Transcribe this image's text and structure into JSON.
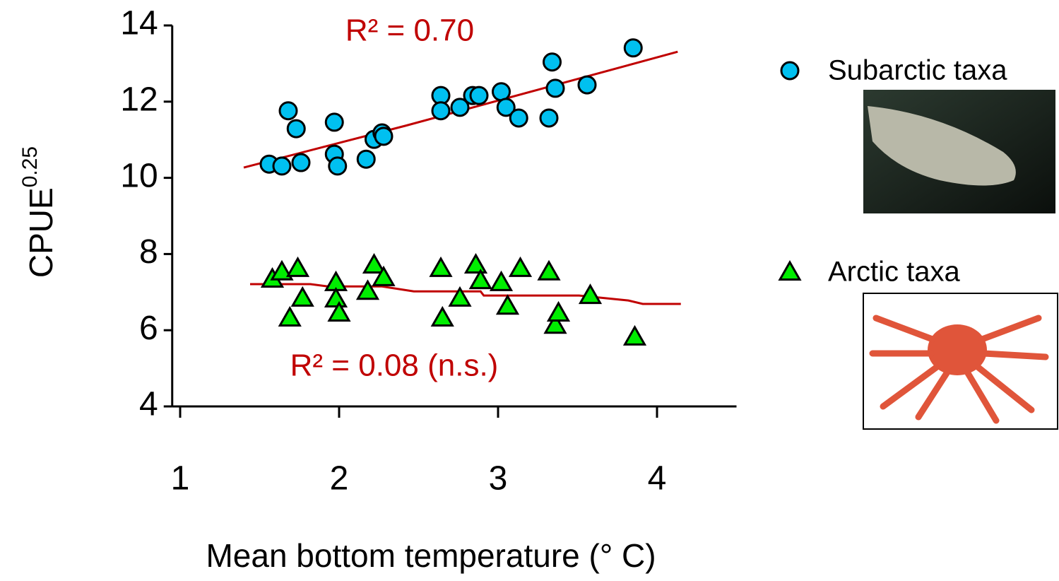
{
  "chart_data": {
    "type": "scatter",
    "xlabel": "Mean bottom temperature (° C)",
    "ylabel": {
      "text": "CPUE",
      "superscript": "0.25"
    },
    "xlim": [
      0.95,
      4.5
    ],
    "xticks": [
      1,
      2,
      3,
      4
    ],
    "ylim": [
      4,
      14
    ],
    "yticks": [
      4,
      6,
      8,
      10,
      12,
      14
    ],
    "annotations": [
      "R² = 0.70",
      "R² = 0.08 (n.s.)"
    ],
    "annotation_color": "#c00000",
    "series": [
      {
        "name": "Subarctic taxa",
        "marker": "circle",
        "color": "#00c0f0",
        "x": [
          1.56,
          1.64,
          1.68,
          1.73,
          1.76,
          1.97,
          1.97,
          1.99,
          2.17,
          2.22,
          2.27,
          2.28,
          2.64,
          2.64,
          2.76,
          2.84,
          2.88,
          3.02,
          3.05,
          3.13,
          3.32,
          3.34,
          3.36,
          3.56,
          3.85
        ],
        "values": [
          10.36,
          10.31,
          11.76,
          11.29,
          10.4,
          11.46,
          10.62,
          10.31,
          10.49,
          11.01,
          11.18,
          11.09,
          12.16,
          11.76,
          11.85,
          12.16,
          12.16,
          12.26,
          11.85,
          11.57,
          11.57,
          13.04,
          12.35,
          12.44,
          13.41
        ],
        "trend_x": [
          1.4,
          2.42,
          4.13
        ],
        "trend_y": [
          10.27,
          11.37,
          13.31
        ]
      },
      {
        "name": "Arctic taxa",
        "marker": "triangle",
        "color": "#00ee00",
        "x": [
          1.58,
          1.64,
          1.69,
          1.74,
          1.77,
          1.98,
          1.98,
          2.0,
          2.18,
          2.22,
          2.28,
          2.64,
          2.65,
          2.76,
          2.86,
          2.89,
          3.02,
          3.06,
          3.14,
          3.32,
          3.36,
          3.38,
          3.58,
          3.86
        ],
        "values": [
          7.34,
          7.53,
          6.32,
          7.62,
          6.84,
          7.25,
          6.82,
          6.45,
          7.02,
          7.71,
          7.38,
          7.62,
          6.32,
          6.84,
          7.71,
          7.3,
          7.25,
          6.63,
          7.62,
          7.53,
          6.13,
          6.45,
          6.91,
          5.82
        ],
        "trend_x": [
          1.44,
          1.82,
          1.93,
          2.27,
          2.47,
          2.89,
          2.91,
          3.51,
          3.82,
          3.91,
          4.15
        ],
        "trend_y": [
          7.21,
          7.21,
          7.15,
          7.15,
          7.02,
          7.02,
          6.91,
          6.91,
          6.78,
          6.69,
          6.69
        ]
      }
    ]
  }
}
